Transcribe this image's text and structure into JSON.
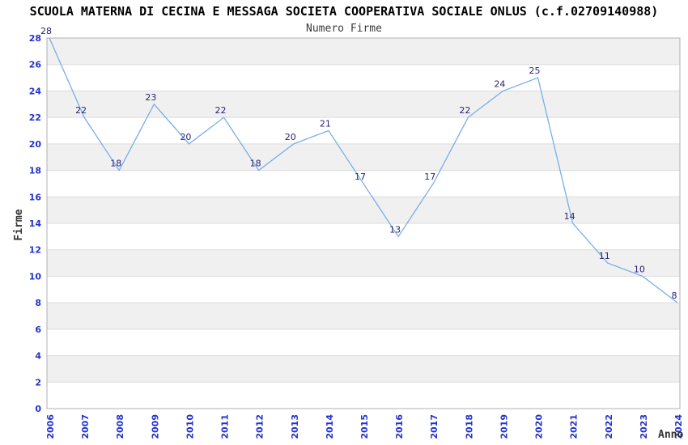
{
  "header": {
    "title": "SCUOLA MATERNA DI CECINA E MESSAGA SOCIETA COOPERATIVA SOCIALE ONLUS (c.f.02709140988)",
    "subtitle": "Numero Firme"
  },
  "chart_data": {
    "type": "line",
    "title": "SCUOLA MATERNA DI CECINA E MESSAGA SOCIETA COOPERATIVA SOCIALE ONLUS (c.f.02709140988)",
    "subtitle": "Numero Firme",
    "xlabel": "Anno",
    "ylabel": "Firme",
    "x": [
      2006,
      2007,
      2008,
      2009,
      2010,
      2011,
      2012,
      2013,
      2014,
      2015,
      2016,
      2017,
      2018,
      2019,
      2020,
      2021,
      2022,
      2023,
      2024
    ],
    "values": [
      28,
      22,
      18,
      23,
      20,
      22,
      18,
      20,
      21,
      17,
      13,
      17,
      22,
      24,
      25,
      14,
      11,
      10,
      8
    ],
    "ylim": [
      0,
      28
    ],
    "ytick_step": 2,
    "yticks": [
      0,
      2,
      4,
      6,
      8,
      10,
      12,
      14,
      16,
      18,
      20,
      22,
      24,
      26,
      28
    ],
    "grid": "horizontal gridlines every 2 units with alternating shaded bands",
    "legend": "none",
    "point_labels_visible": true,
    "x_tick_rotation_deg": -90,
    "colors": {
      "line": "#79aee8",
      "tick_label": "#2333cc",
      "data_label": "#252575",
      "band": "#f0f0f0",
      "gridline": "#dcdcdc",
      "plot_border": "#b0b0b0",
      "title": "#000000",
      "subtitle": "#3a3a3a",
      "axis_title": "#333333",
      "background": "#ffffff"
    }
  }
}
